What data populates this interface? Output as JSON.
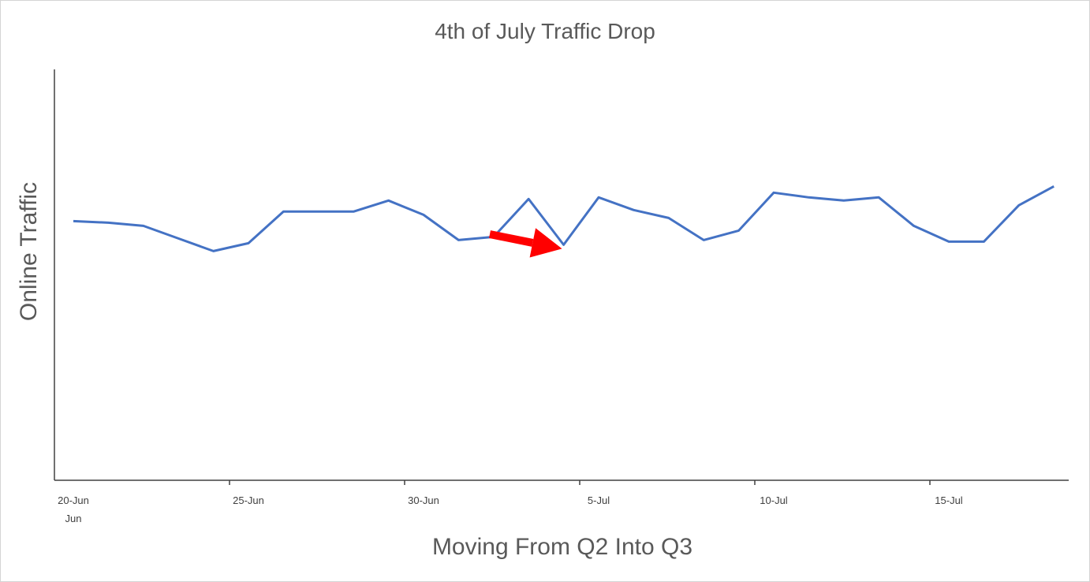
{
  "chart_data": {
    "type": "line",
    "title": "4th of July Traffic Drop",
    "xlabel": "Moving From Q2 Into Q3",
    "ylabel": "Online Traffic",
    "x_ticks": [
      "20-Jun",
      "25-Jun",
      "30-Jun",
      "5-Jul",
      "10-Jul",
      "15-Jul"
    ],
    "x_tick_sublabels": [
      "Jun",
      "",
      "",
      "",
      "",
      ""
    ],
    "x": [
      "20-Jun",
      "21-Jun",
      "22-Jun",
      "23-Jun",
      "24-Jun",
      "25-Jun",
      "26-Jun",
      "27-Jun",
      "28-Jun",
      "29-Jun",
      "30-Jun",
      "1-Jul",
      "2-Jul",
      "3-Jul",
      "4-Jul",
      "5-Jul",
      "6-Jul",
      "7-Jul",
      "8-Jul",
      "9-Jul",
      "10-Jul",
      "11-Jul",
      "12-Jul",
      "13-Jul",
      "14-Jul",
      "15-Jul",
      "16-Jul",
      "17-Jul",
      "18-Jul"
    ],
    "series": [
      {
        "values": [
          82,
          81.5,
          80.5,
          76.5,
          72.5,
          75,
          85,
          85,
          85,
          88.5,
          84,
          76,
          77,
          89,
          74.5,
          89.5,
          85.5,
          83,
          76,
          79,
          91,
          89.5,
          88.5,
          89.5,
          80.5,
          75.5,
          75.5,
          87,
          93
        ],
        "color": "#4472C4"
      }
    ],
    "ylim": [
      0,
      130
    ],
    "show_y_ticks": false,
    "grid": false,
    "annotation": {
      "type": "arrow",
      "color": "#FF0000",
      "points_to": "4-Jul"
    }
  }
}
